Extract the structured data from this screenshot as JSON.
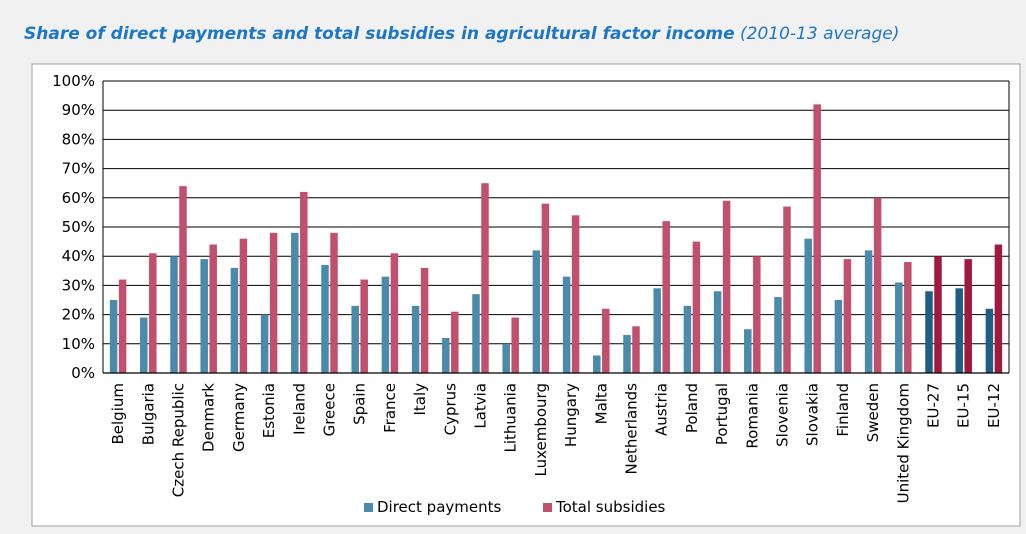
{
  "chart_data": {
    "type": "bar",
    "title": "Share of direct payments and total subsidies in agricultural factor income",
    "subtitle": "(2010-13 average)",
    "categories": [
      "Belgium",
      "Bulgaria",
      "Czech Republic",
      "Denmark",
      "Germany",
      "Estonia",
      "Ireland",
      "Greece",
      "Spain",
      "France",
      "Italy",
      "Cyprus",
      "Latvia",
      "Lithuania",
      "Luxembourg",
      "Hungary",
      "Malta",
      "Netherlands",
      "Austria",
      "Poland",
      "Portugal",
      "Romania",
      "Slovenia",
      "Slovakia",
      "Finland",
      "Sweden",
      "United Kingdom",
      "EU-27",
      "EU-15",
      "EU-12"
    ],
    "series": [
      {
        "name": "Direct payments",
        "values": [
          25,
          19,
          40,
          39,
          36,
          20,
          48,
          37,
          23,
          33,
          23,
          12,
          27,
          10,
          42,
          33,
          6,
          13,
          29,
          23,
          28,
          15,
          26,
          46,
          25,
          42,
          31,
          28,
          29,
          22
        ]
      },
      {
        "name": "Total subsidies",
        "values": [
          32,
          41,
          64,
          44,
          46,
          48,
          62,
          48,
          32,
          41,
          36,
          21,
          65,
          19,
          58,
          54,
          22,
          16,
          52,
          45,
          59,
          40,
          57,
          92,
          39,
          60,
          38,
          40,
          39,
          44
        ]
      }
    ],
    "yticks": [
      "0%",
      "10%",
      "20%",
      "30%",
      "40%",
      "50%",
      "60%",
      "70%",
      "80%",
      "90%",
      "100%"
    ],
    "ylim": [
      0,
      100
    ],
    "grid": true,
    "legend": "bottom",
    "colors": {
      "direct": "#4a8aaa",
      "total": "#c0506e",
      "direct_eu": "#1f5f86",
      "total_eu": "#a01a40"
    }
  }
}
